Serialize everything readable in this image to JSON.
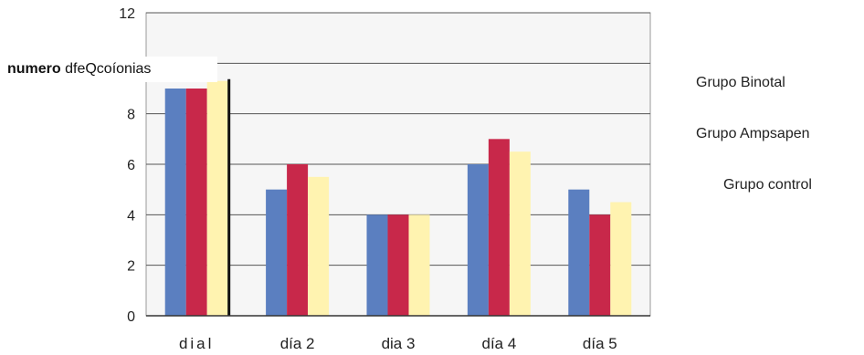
{
  "chart_data": {
    "type": "bar",
    "categories": [
      "dial",
      "día 2",
      "dia 3",
      "día 4",
      "día 5"
    ],
    "series": [
      {
        "name": "Grupo  Binotal",
        "color": "#5b7fc0",
        "values": [
          9,
          5,
          4,
          6,
          5
        ]
      },
      {
        "name": "Grupo Ampsapen",
        "color": "#c8284a",
        "values": [
          9,
          6,
          4,
          7,
          4
        ]
      },
      {
        "name": "Grupo control",
        "color": "#fff3b0",
        "values": [
          9.3,
          5.5,
          4,
          6.5,
          4.5
        ]
      }
    ],
    "ylabel_bold": "numero",
    "ylabel_rest": " dfeQcoíonias",
    "ylim": [
      0,
      12
    ],
    "yticks": [
      "0",
      "2",
      "4",
      "6",
      "8",
      "",
      "12"
    ],
    "grid": true,
    "legend_position": "right"
  }
}
